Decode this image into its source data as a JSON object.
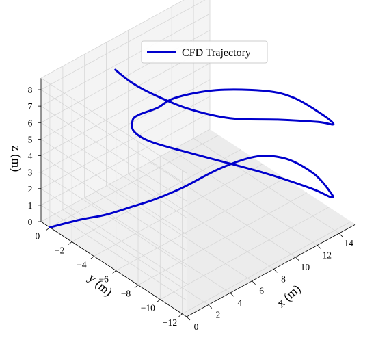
{
  "chart_data": {
    "type": "line",
    "projection": "3d",
    "xlabel": "x (m)",
    "ylabel": "y (m)",
    "zlabel": "z (m)",
    "xticks": [
      0,
      2,
      4,
      6,
      8,
      10,
      12,
      14
    ],
    "yticks": [
      0,
      -2,
      -4,
      -6,
      -8,
      -10,
      -12
    ],
    "zticks": [
      0,
      1,
      2,
      3,
      4,
      5,
      6,
      7,
      8
    ],
    "xlim": [
      0,
      15.5
    ],
    "ylim": [
      0.8,
      -12.4
    ],
    "zlim": [
      0,
      8.7
    ],
    "grid": true,
    "legend_position": "top-center",
    "series": [
      {
        "name": "CFD Trajectory",
        "color": "#0000cc",
        "points": [
          {
            "x": 0,
            "y": 0,
            "z": 0.0
          },
          {
            "x": 1.5,
            "y": -1.3,
            "z": 0.5
          },
          {
            "x": 2.5,
            "y": -2.6,
            "z": 1.0
          },
          {
            "x": 3.8,
            "y": -3.7,
            "z": 1.5
          },
          {
            "x": 4.8,
            "y": -4.7,
            "z": 2.0
          },
          {
            "x": 6.5,
            "y": -5.6,
            "z": 2.5
          },
          {
            "x": 9.4,
            "y": -6.2,
            "z": 2.9
          },
          {
            "x": 12.1,
            "y": -6.8,
            "z": 2.9
          },
          {
            "x": 13.9,
            "y": -7.7,
            "z": 2.5
          },
          {
            "x": 14.9,
            "y": -9.2,
            "z": 1.9
          },
          {
            "x": 15.2,
            "y": -10.4,
            "z": 1.2
          },
          {
            "x": 15.1,
            "y": -10.6,
            "z": 1.0
          },
          {
            "x": 14.4,
            "y": -9.5,
            "z": 1.3
          },
          {
            "x": 12.2,
            "y": -7.3,
            "z": 2.1
          },
          {
            "x": 9.0,
            "y": -4.1,
            "z": 3.0
          },
          {
            "x": 7.2,
            "y": -2.1,
            "z": 3.5
          },
          {
            "x": 6.5,
            "y": -1.2,
            "z": 4.0
          },
          {
            "x": 6.7,
            "y": -0.9,
            "z": 4.5
          },
          {
            "x": 6.7,
            "y": -1.4,
            "z": 5.0
          },
          {
            "x": 6.6,
            "y": -2.1,
            "z": 5.5
          },
          {
            "x": 7.0,
            "y": -2.9,
            "z": 6.0
          },
          {
            "x": 8.0,
            "y": -3.5,
            "z": 6.5
          },
          {
            "x": 10.1,
            "y": -5.1,
            "z": 6.9
          },
          {
            "x": 12.5,
            "y": -7.2,
            "z": 6.9
          },
          {
            "x": 13.9,
            "y": -8.4,
            "z": 6.5
          },
          {
            "x": 14.8,
            "y": -10.0,
            "z": 5.9
          },
          {
            "x": 15.0,
            "y": -10.9,
            "z": 5.6
          },
          {
            "x": 14.4,
            "y": -10.1,
            "z": 5.6
          },
          {
            "x": 12.3,
            "y": -8.5,
            "z": 5.8
          },
          {
            "x": 9.8,
            "y": -6.7,
            "z": 6.0
          },
          {
            "x": 7.9,
            "y": -4.7,
            "z": 6.4
          },
          {
            "x": 6.5,
            "y": -2.9,
            "z": 7.0
          },
          {
            "x": 5.7,
            "y": -1.8,
            "z": 7.5
          },
          {
            "x": 5.1,
            "y": -0.9,
            "z": 8.1
          }
        ]
      }
    ]
  }
}
